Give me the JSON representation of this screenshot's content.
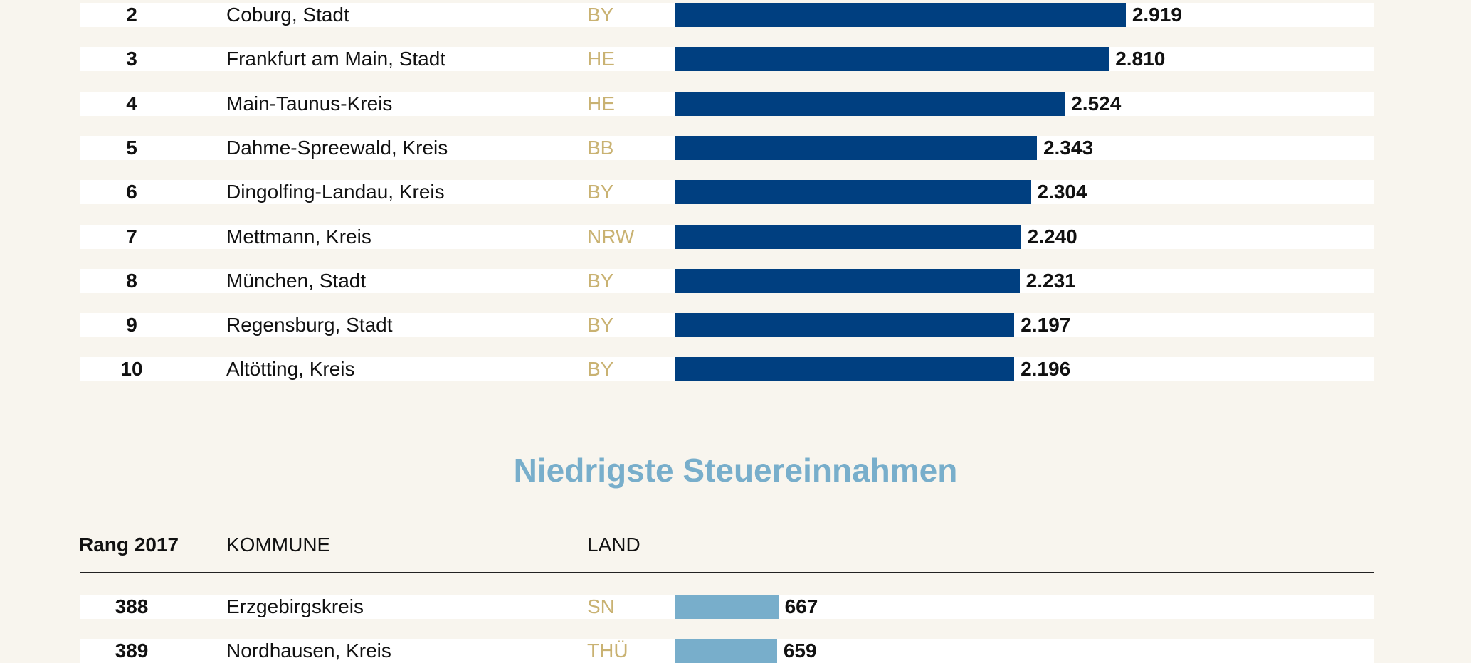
{
  "colors": {
    "top_bar": "#003f80",
    "low_bar": "#78aecb",
    "land_text": "#c9b272",
    "title": "#78aecb"
  },
  "chart_data": {
    "type": "bar",
    "orientation": "horizontal",
    "top_table": {
      "rows": [
        {
          "rank": "2",
          "kommune": "Coburg, Stadt",
          "land": "BY",
          "value": 2919,
          "label": "2.919"
        },
        {
          "rank": "3",
          "kommune": "Frankfurt am Main, Stadt",
          "land": "HE",
          "value": 2810,
          "label": "2.810"
        },
        {
          "rank": "4",
          "kommune": "Main-Taunus-Kreis",
          "land": "HE",
          "value": 2524,
          "label": "2.524"
        },
        {
          "rank": "5",
          "kommune": "Dahme-Spreewald, Kreis",
          "land": "BB",
          "value": 2343,
          "label": "2.343"
        },
        {
          "rank": "6",
          "kommune": "Dingolfing-Landau, Kreis",
          "land": "BY",
          "value": 2304,
          "label": "2.304"
        },
        {
          "rank": "7",
          "kommune": "Mettmann, Kreis",
          "land": "NRW",
          "value": 2240,
          "label": "2.240"
        },
        {
          "rank": "8",
          "kommune": "München, Stadt",
          "land": "BY",
          "value": 2231,
          "label": "2.231"
        },
        {
          "rank": "9",
          "kommune": "Regensburg, Stadt",
          "land": "BY",
          "value": 2197,
          "label": "2.197"
        },
        {
          "rank": "10",
          "kommune": "Altötting, Kreis",
          "land": "BY",
          "value": 2196,
          "label": "2.196"
        }
      ]
    },
    "low_table": {
      "title": "Niedrigste Steuereinnahmen",
      "headers": {
        "rank": "Rang 2017",
        "kommune": "KOMMUNE",
        "land": "LAND"
      },
      "rows": [
        {
          "rank": "388",
          "kommune": "Erzgebirgskreis",
          "land": "SN",
          "value": 667,
          "label": "667"
        },
        {
          "rank": "389",
          "kommune": "Nordhausen, Kreis",
          "land": "THÜ",
          "value": 659,
          "label": "659"
        }
      ]
    }
  }
}
